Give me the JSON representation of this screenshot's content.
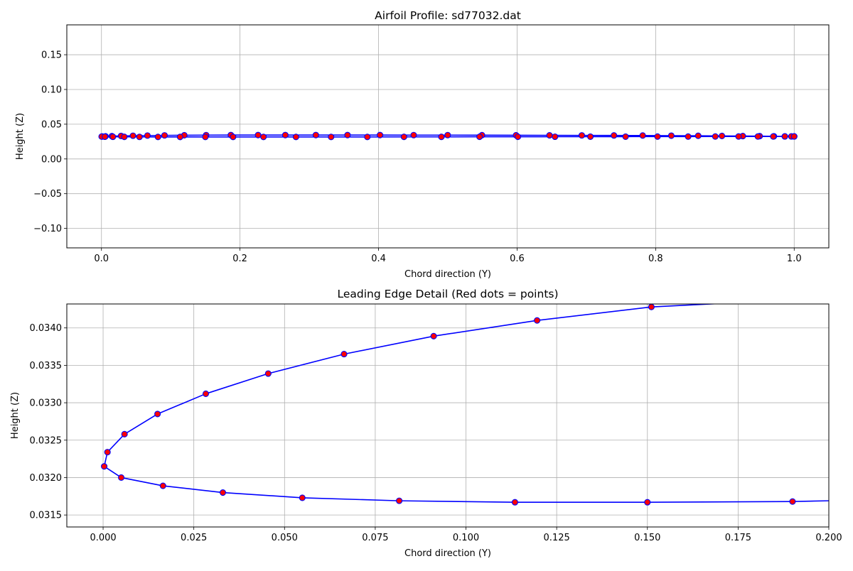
{
  "figure": {
    "colors": {
      "line": "#0000ff",
      "marker_face": "#ff0000",
      "marker_edge": "#0000ff",
      "grid": "#b0b0b0"
    }
  },
  "chart_data": [
    {
      "type": "line",
      "title": "Airfoil Profile: sd77032.dat",
      "xlabel": "Chord direction (Y)",
      "ylabel": "Height (Z)",
      "xlim": [
        -0.05,
        1.05
      ],
      "ylim": [
        -0.128,
        0.193
      ],
      "xticks": [
        0.0,
        0.2,
        0.4,
        0.6,
        0.8,
        1.0
      ],
      "xtick_labels": [
        "0.0",
        "0.2",
        "0.4",
        "0.6",
        "0.8",
        "1.0"
      ],
      "yticks": [
        -0.1,
        -0.05,
        0.0,
        0.05,
        0.1,
        0.15
      ],
      "ytick_labels": [
        "−0.10",
        "−0.05",
        "0.00",
        "0.05",
        "0.10",
        "0.15"
      ],
      "grid": true,
      "series": [
        {
          "marker": "circle",
          "x": [
            1.0,
            0.9865,
            0.9707,
            0.9502,
            0.9258,
            0.8957,
            0.8614,
            0.8226,
            0.7813,
            0.7398,
            0.6934,
            0.6468,
            0.5985,
            0.5493,
            0.4998,
            0.4507,
            0.4021,
            0.3552,
            0.3095,
            0.2654,
            0.2261,
            0.1868,
            0.1511,
            0.1196,
            0.0911,
            0.0664,
            0.0455,
            0.0283,
            0.015,
            0.0059,
            0.0012,
            0.0003,
            0.005,
            0.0165,
            0.033,
            0.0549,
            0.0816,
            0.1135,
            0.15,
            0.19,
            0.2339,
            0.2808,
            0.3315,
            0.3838,
            0.4367,
            0.4907,
            0.5458,
            0.6011,
            0.6547,
            0.7058,
            0.7566,
            0.8027,
            0.8469,
            0.8861,
            0.9197,
            0.9476,
            0.9698,
            0.9865,
            0.9959,
            1.0
          ],
          "y": [
            0.0324,
            0.0325,
            0.0326,
            0.0328,
            0.0329,
            0.0331,
            0.0333,
            0.0335,
            0.0337,
            0.0338,
            0.0339,
            0.034,
            0.0341,
            0.0342,
            0.0343,
            0.0343,
            0.0344,
            0.0344,
            0.0344,
            0.0344,
            0.0344,
            0.0344,
            0.0343,
            0.0341,
            0.0339,
            0.03365,
            0.0334,
            0.03312,
            0.03285,
            0.03258,
            0.03234,
            0.03215,
            0.032,
            0.03189,
            0.0318,
            0.03173,
            0.03169,
            0.03167,
            0.03167,
            0.03168,
            0.0317,
            0.0317,
            0.0317,
            0.0317,
            0.0318,
            0.0318,
            0.0319,
            0.0319,
            0.032,
            0.0321,
            0.0321,
            0.0322,
            0.0322,
            0.0323,
            0.0323,
            0.0323,
            0.0323,
            0.0324,
            0.0324,
            0.0324
          ]
        }
      ]
    },
    {
      "type": "line",
      "title": "Leading Edge Detail (Red dots = points)",
      "xlabel": "Chord direction (Y)",
      "ylabel": "Height (Z)",
      "xlim": [
        -0.01,
        0.2
      ],
      "ylim": [
        0.03134,
        0.03432
      ],
      "xticks": [
        0.0,
        0.025,
        0.05,
        0.075,
        0.1,
        0.125,
        0.15,
        0.175,
        0.2
      ],
      "xtick_labels": [
        "0.000",
        "0.025",
        "0.050",
        "0.075",
        "0.100",
        "0.125",
        "0.150",
        "0.175",
        "0.200"
      ],
      "yticks": [
        0.0315,
        0.032,
        0.0325,
        0.033,
        0.0335,
        0.034
      ],
      "ytick_labels": [
        "0.0315",
        "0.0320",
        "0.0325",
        "0.0330",
        "0.0335",
        "0.0340"
      ],
      "grid": true,
      "series": [
        {
          "marker": "circle",
          "x": [
            0.1511,
            0.1196,
            0.0911,
            0.0664,
            0.0455,
            0.0283,
            0.015,
            0.0059,
            0.0012,
            0.0003,
            0.005,
            0.0165,
            0.033,
            0.0549,
            0.0816,
            0.1135,
            0.15,
            0.19
          ],
          "y": [
            0.03428,
            0.0341,
            0.03389,
            0.03365,
            0.03339,
            0.03312,
            0.03285,
            0.03258,
            0.03234,
            0.03215,
            0.032,
            0.03189,
            0.0318,
            0.03173,
            0.03169,
            0.03167,
            0.03167,
            0.03168
          ],
          "continues_beyond_view": {
            "start": [
              0.2,
              0.0344
            ],
            "end": [
              0.2,
              0.03169
            ]
          }
        }
      ]
    }
  ]
}
